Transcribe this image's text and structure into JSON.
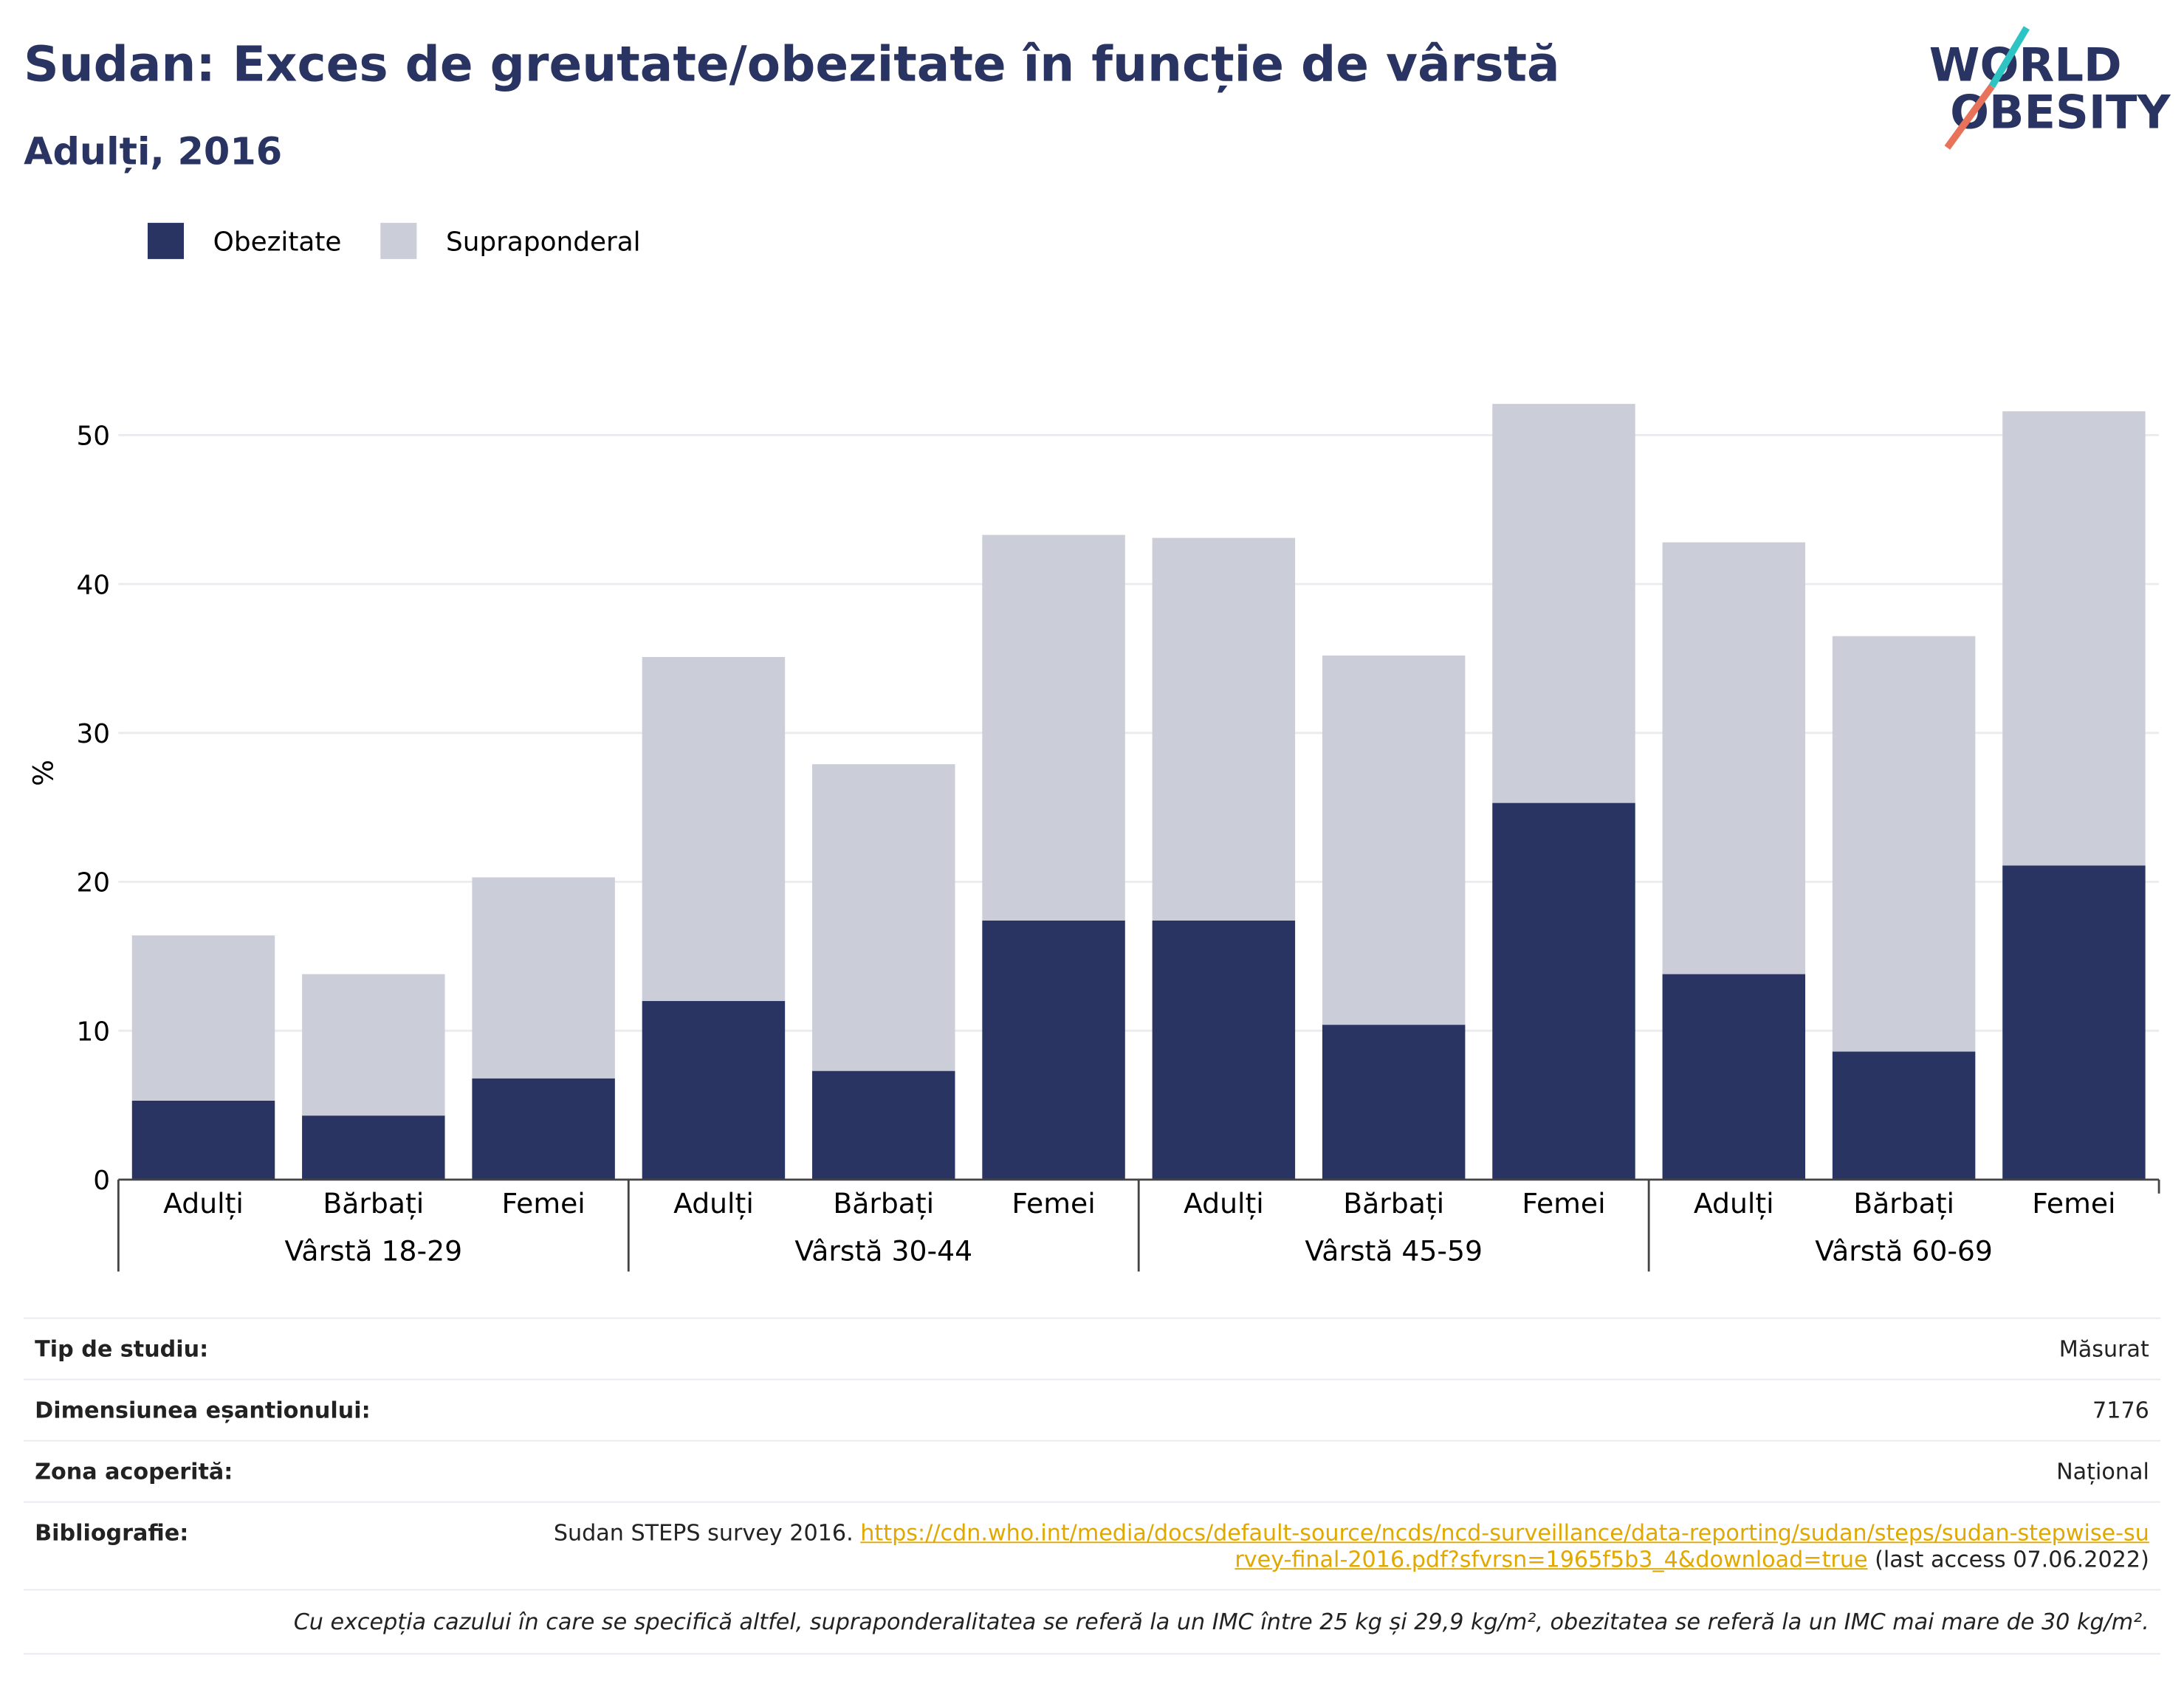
{
  "title": "Sudan: Exces de greutate/obezitate în funcție de vârstă",
  "subtitle": "Adulți, 2016",
  "logo": [
    "WORLD",
    "OBESITY"
  ],
  "chart_data": {
    "type": "stacked-bar",
    "categories": [
      "Adulți",
      "Bărbați",
      "Femei",
      "Adulți",
      "Bărbați",
      "Femei",
      "Adulți",
      "Bărbați",
      "Femei",
      "Adulți",
      "Bărbați",
      "Femei"
    ],
    "groups": [
      "Vârstă 18-29",
      "Vârstă 30-44",
      "Vârstă 45-59",
      "Vârstă 60-69"
    ],
    "series": [
      {
        "name": "Obezitate",
        "color": "#293462",
        "values": [
          5.3,
          4.3,
          6.8,
          12.0,
          7.3,
          17.4,
          17.4,
          10.4,
          25.3,
          13.8,
          8.6,
          21.1
        ]
      },
      {
        "name": "Supraponderal",
        "color": "#cbcdd8",
        "values": [
          11.1,
          9.5,
          13.5,
          23.1,
          20.6,
          25.9,
          25.7,
          24.8,
          26.8,
          29.0,
          27.9,
          30.5
        ]
      }
    ],
    "ylabel": "%",
    "ylim": [
      0,
      55
    ],
    "yticks": [
      0,
      10,
      20,
      30,
      40,
      50
    ],
    "grid": true
  },
  "table": {
    "rows": [
      [
        "Tip de studiu:",
        "Măsurat"
      ],
      [
        "Dimensiunea eșantionului:",
        "7176"
      ],
      [
        "Zona acoperită:",
        "Național"
      ]
    ],
    "bibliography": {
      "label": "Bibliografie:",
      "text": "Sudan STEPS survey 2016.",
      "link": "https://cdn.who.int/media/docs/default-source/ncds/ncd-surveillance/data-reporting/sudan/steps/sudan-stepwise-survey-final-2016.pdf?sfvrsn=1965f5b3_4&download=true",
      "note": "(last access 07.06.2022)"
    },
    "footnote": "Cu excepția cazului în care se specifică altfel, supraponderalitatea se referă la un IMC între 25 kg și 29,9 kg/m², obezitatea se referă la un IMC mai mare de 30 kg/m²."
  }
}
